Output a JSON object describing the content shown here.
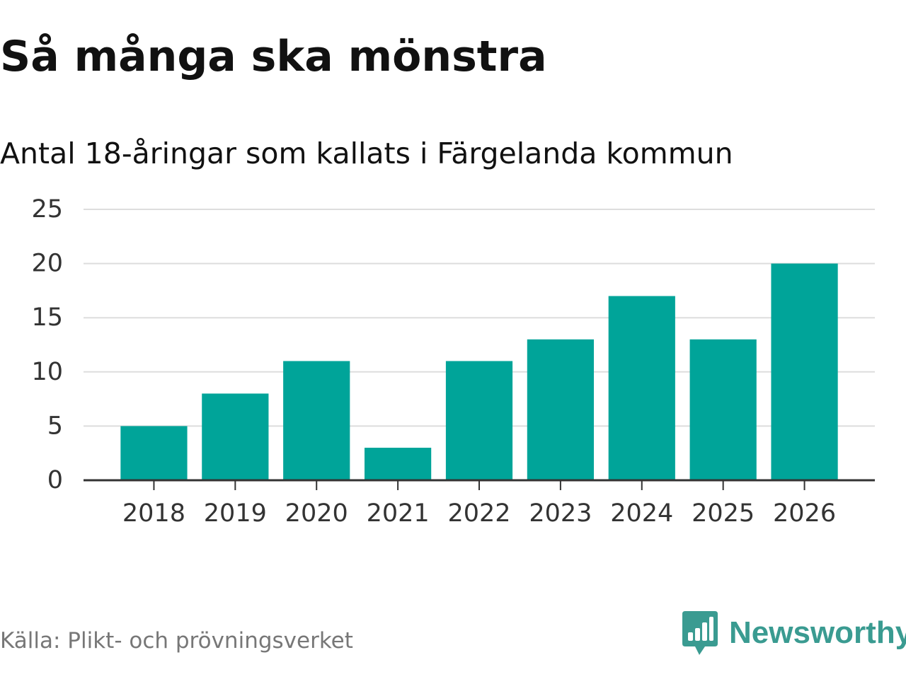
{
  "header": {
    "title": "Så många ska mönstra",
    "subtitle": "Antal 18-åringar som kallats i Färgelanda kommun"
  },
  "footer": {
    "source": "Källa: Plikt- och prövningsverket",
    "brand_name": "Newsworthy",
    "brand_icon": "newsworthy-logo-icon"
  },
  "colors": {
    "bar": "#00a499",
    "brand": "#3a9b91",
    "grid": "#dddddd",
    "axis": "#333333"
  },
  "chart_data": {
    "type": "bar",
    "title": "Så många ska mönstra",
    "subtitle": "Antal 18-åringar som kallats i Färgelanda kommun",
    "xlabel": "",
    "ylabel": "",
    "categories": [
      "2018",
      "2019",
      "2020",
      "2021",
      "2022",
      "2023",
      "2024",
      "2025",
      "2026"
    ],
    "values": [
      5,
      8,
      11,
      3,
      11,
      13,
      17,
      13,
      20
    ],
    "ylim": [
      0,
      25
    ],
    "yticks": [
      0,
      5,
      10,
      15,
      20,
      25
    ],
    "grid": true,
    "legend": "none"
  }
}
